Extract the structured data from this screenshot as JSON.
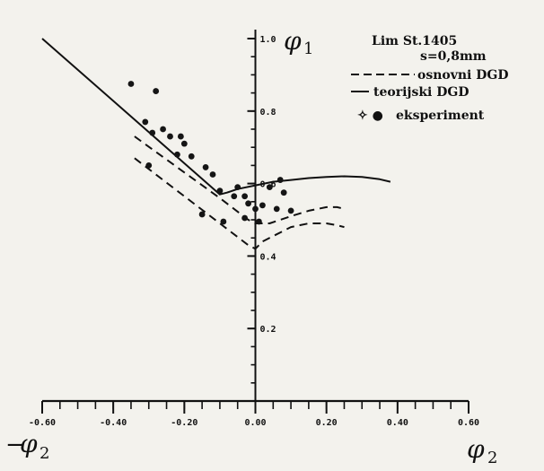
{
  "chart_data": {
    "type": "scatter",
    "x_axis": {
      "range": [
        -0.6,
        0.6
      ],
      "major_ticks": [
        -0.6,
        -0.4,
        -0.2,
        0.0,
        0.2,
        0.4,
        0.6
      ],
      "tick_labels": [
        "-0.60",
        "-0.40",
        "-0.20",
        "0.00",
        "0.20",
        "0.40",
        "0.60"
      ],
      "minor_step": 0.05,
      "label_left_minus": "−",
      "label_left_symbol": "φ",
      "label_left_sub": "2",
      "label_right_symbol": "φ",
      "label_right_sub": "2"
    },
    "y_axis": {
      "range": [
        0.0,
        1.0
      ],
      "major_ticks": [
        0.2,
        0.4,
        0.6,
        0.8,
        1.0
      ],
      "tick_labels": [
        "0.2",
        "0.4",
        "0.6",
        "0.8",
        "1.0"
      ],
      "minor_step": 0.05,
      "label_symbol": "φ",
      "label_sub": "1"
    },
    "legend": {
      "placement": "top-right",
      "title": "Lim St.1405",
      "subtitle": "s=0,8mm",
      "entries": [
        {
          "marker": "dashed",
          "label": "osnovni DGD"
        },
        {
          "marker": "solid",
          "label": "teorijski DGD"
        },
        {
          "marker": "symbols",
          "glyph": "✧ ●",
          "label": "eksperiment"
        }
      ]
    },
    "series": [
      {
        "name": "teorijski DGD",
        "style": "solid",
        "x": [
          -0.6,
          -0.1,
          -0.08,
          -0.05,
          0.0,
          0.05,
          0.1,
          0.15,
          0.2,
          0.25,
          0.3,
          0.35,
          0.38
        ],
        "y": [
          1.0,
          0.57,
          0.575,
          0.585,
          0.595,
          0.605,
          0.61,
          0.615,
          0.618,
          0.62,
          0.618,
          0.612,
          0.605
        ]
      },
      {
        "name": "osnovni DGD (upper)",
        "style": "dashed",
        "x": [
          -0.34,
          -0.1,
          -0.06,
          -0.02,
          0.0,
          0.04,
          0.1,
          0.15,
          0.2,
          0.23,
          0.25
        ],
        "y": [
          0.73,
          0.56,
          0.53,
          0.5,
          0.49,
          0.49,
          0.51,
          0.525,
          0.535,
          0.535,
          0.53
        ]
      },
      {
        "name": "osnovni DGD (lower)",
        "style": "dashed",
        "x": [
          -0.34,
          -0.02,
          0.0,
          0.02,
          0.06,
          0.1,
          0.15,
          0.2,
          0.23,
          0.25
        ],
        "y": [
          0.67,
          0.43,
          0.42,
          0.44,
          0.46,
          0.48,
          0.49,
          0.49,
          0.485,
          0.48
        ]
      }
    ],
    "points": [
      {
        "x": -0.35,
        "y": 0.875
      },
      {
        "x": -0.28,
        "y": 0.855
      },
      {
        "x": -0.26,
        "y": 0.75
      },
      {
        "x": -0.21,
        "y": 0.73
      },
      {
        "x": -0.31,
        "y": 0.77
      },
      {
        "x": -0.29,
        "y": 0.74
      },
      {
        "x": -0.24,
        "y": 0.73
      },
      {
        "x": -0.2,
        "y": 0.71
      },
      {
        "x": -0.3,
        "y": 0.65
      },
      {
        "x": -0.22,
        "y": 0.68
      },
      {
        "x": -0.18,
        "y": 0.675
      },
      {
        "x": -0.14,
        "y": 0.645
      },
      {
        "x": -0.12,
        "y": 0.625
      },
      {
        "x": -0.1,
        "y": 0.58
      },
      {
        "x": -0.06,
        "y": 0.565
      },
      {
        "x": -0.05,
        "y": 0.59
      },
      {
        "x": -0.03,
        "y": 0.565
      },
      {
        "x": -0.02,
        "y": 0.545
      },
      {
        "x": 0.0,
        "y": 0.53
      },
      {
        "x": 0.02,
        "y": 0.54
      },
      {
        "x": 0.04,
        "y": 0.59
      },
      {
        "x": 0.06,
        "y": 0.53
      },
      {
        "x": 0.08,
        "y": 0.575
      },
      {
        "x": 0.1,
        "y": 0.525
      },
      {
        "x": 0.07,
        "y": 0.61
      },
      {
        "x": -0.15,
        "y": 0.515
      },
      {
        "x": -0.09,
        "y": 0.495
      },
      {
        "x": -0.03,
        "y": 0.505
      },
      {
        "x": 0.01,
        "y": 0.495
      }
    ]
  }
}
